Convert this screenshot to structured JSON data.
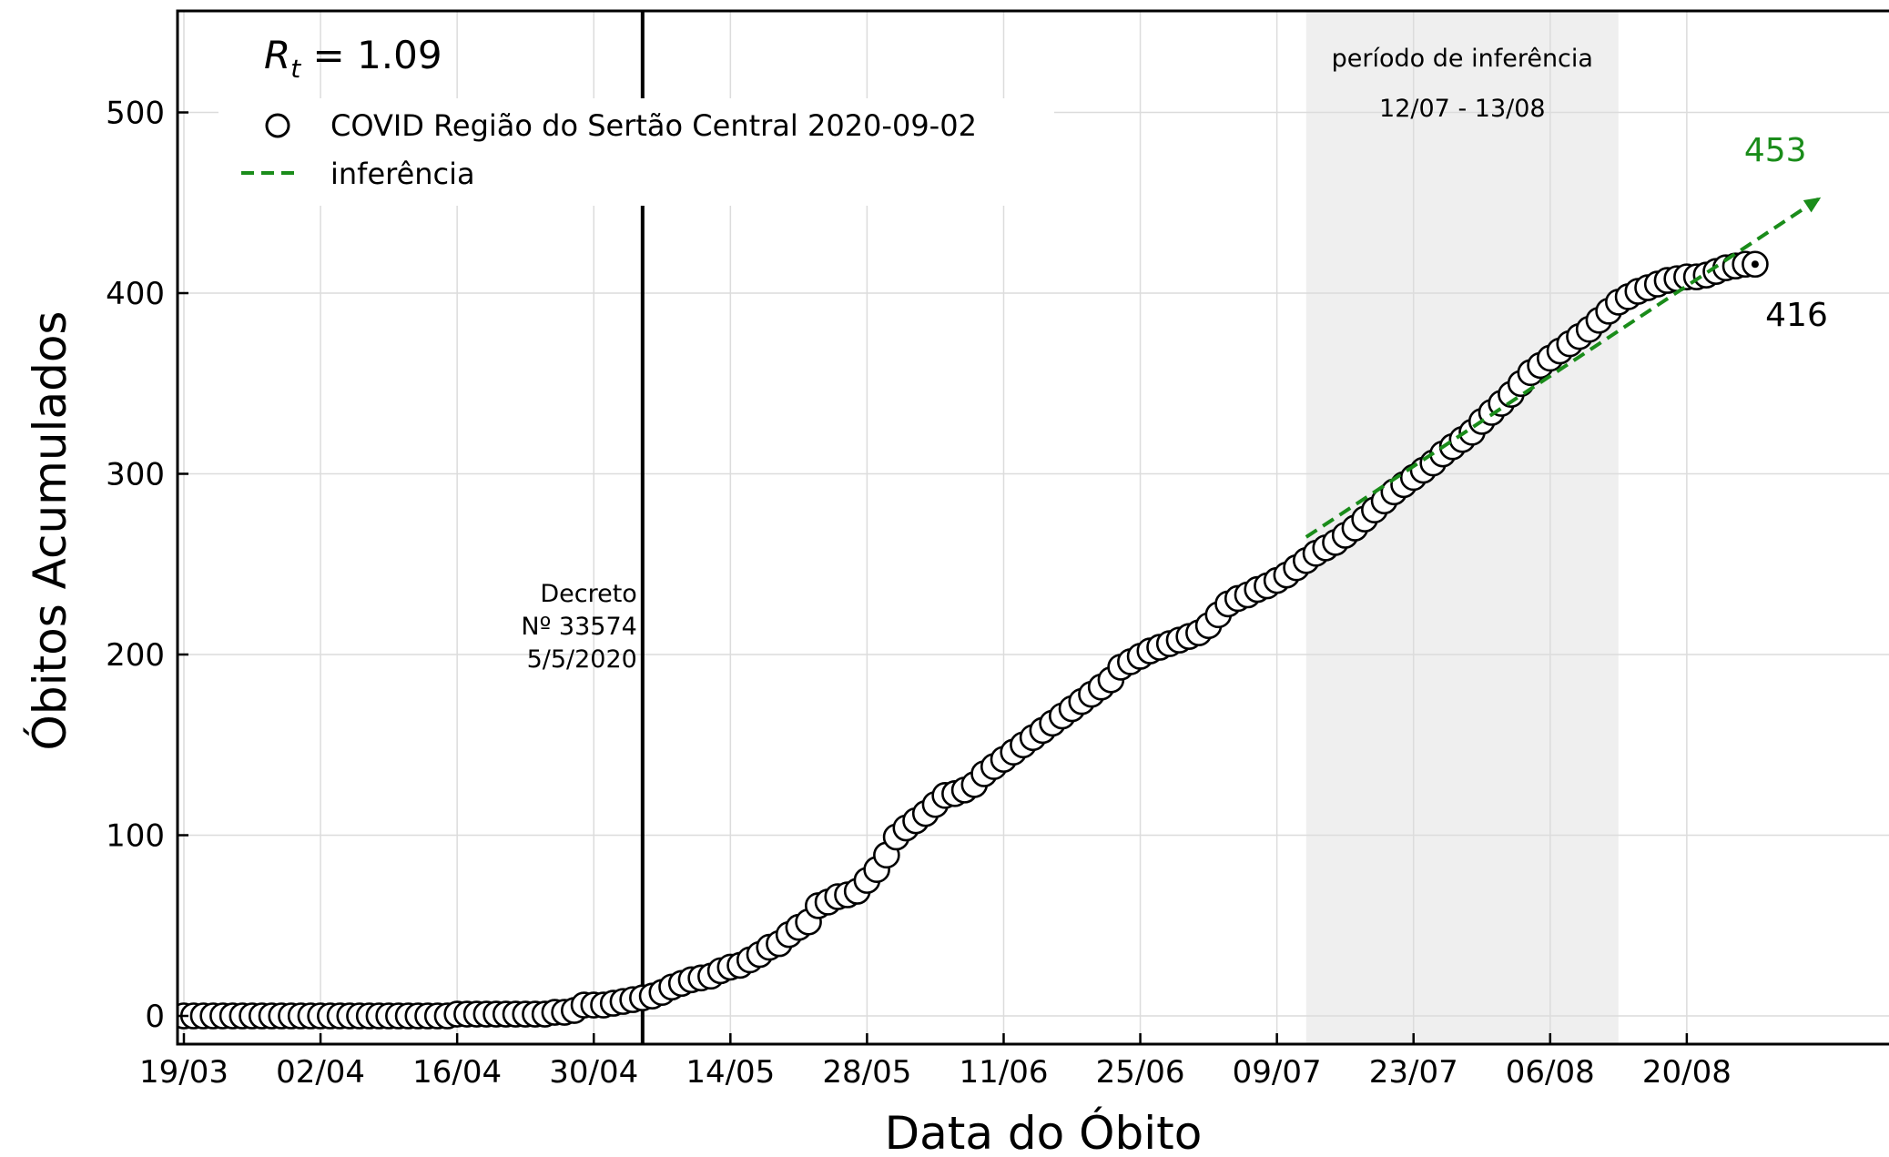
{
  "chart_data": {
    "type": "scatter",
    "title": "",
    "xlabel": "Data do Óbito",
    "ylabel": "Óbitos Acumulados",
    "rt_label_prefix": "R",
    "rt_label_sub": "t",
    "rt_label_suffix": " = 1.09",
    "ylim": [
      -15,
      555
    ],
    "xlim": [
      "2020-03-19",
      "2020-09-02"
    ],
    "yticks": [
      0,
      100,
      200,
      300,
      400,
      500
    ],
    "xticks": [
      "2020-03-19",
      "2020-04-02",
      "2020-04-16",
      "2020-04-30",
      "2020-05-14",
      "2020-05-28",
      "2020-06-11",
      "2020-06-25",
      "2020-07-09",
      "2020-07-23",
      "2020-08-06",
      "2020-08-20"
    ],
    "xtick_labels": [
      "19/03",
      "02/04",
      "16/04",
      "30/04",
      "14/05",
      "28/05",
      "11/06",
      "25/06",
      "09/07",
      "23/07",
      "06/08",
      "20/08"
    ],
    "grid": true,
    "legend_position": "top-left",
    "legend": {
      "series_label": "COVID Região do Sertão Central 2020-09-02",
      "inference_label": "inferência"
    },
    "decree": {
      "date": "2020-05-05",
      "line1": "Decreto",
      "line2": "Nº 33574",
      "line3": "5/5/2020"
    },
    "inference_period": {
      "start": "2020-07-12",
      "end": "2020-08-13",
      "title": "período de inferência",
      "range_label": "12/07 - 13/08"
    },
    "inference_line": {
      "start_date": "2020-07-12",
      "start_value": 265,
      "end_date": "2020-09-02",
      "end_value": 453,
      "end_label": "453"
    },
    "last_point": {
      "date": "2020-09-01",
      "value": 416,
      "label": "416"
    },
    "colors": {
      "inference": "#1a8c1a",
      "shade": "#efefef",
      "marker_edge": "#000000",
      "grid": "#dcdcdc"
    },
    "series": [
      {
        "name": "COVID Região do Sertão Central 2020-09-02",
        "x_start": "2020-03-19",
        "step_days": 1,
        "values": [
          0,
          0,
          0,
          0,
          0,
          0,
          0,
          0,
          0,
          0,
          0,
          0,
          0,
          0,
          0,
          0,
          0,
          0,
          0,
          0,
          0,
          0,
          0,
          0,
          0,
          0,
          0,
          0,
          1,
          1,
          1,
          1,
          1,
          1,
          1,
          1,
          1,
          1,
          2,
          2,
          3,
          6,
          6,
          6,
          7,
          8,
          9,
          10,
          11,
          13,
          16,
          18,
          20,
          21,
          22,
          25,
          27,
          28,
          31,
          34,
          38,
          40,
          45,
          49,
          52,
          61,
          63,
          66,
          67,
          69,
          75,
          81,
          89,
          99,
          104,
          108,
          112,
          117,
          122,
          123,
          125,
          128,
          134,
          138,
          142,
          146,
          150,
          154,
          158,
          162,
          166,
          170,
          174,
          178,
          182,
          186,
          193,
          196,
          199,
          202,
          204,
          206,
          208,
          210,
          212,
          216,
          222,
          228,
          231,
          233,
          236,
          238,
          241,
          244,
          248,
          252,
          256,
          259,
          262,
          266,
          270,
          275,
          280,
          285,
          290,
          294,
          298,
          302,
          306,
          311,
          315,
          319,
          323,
          329,
          334,
          339,
          344,
          350,
          356,
          360,
          364,
          368,
          372,
          376,
          380,
          385,
          390,
          395,
          398,
          401,
          403,
          405,
          407,
          408,
          409,
          409,
          410,
          412,
          414,
          415,
          416,
          416
        ]
      }
    ]
  }
}
